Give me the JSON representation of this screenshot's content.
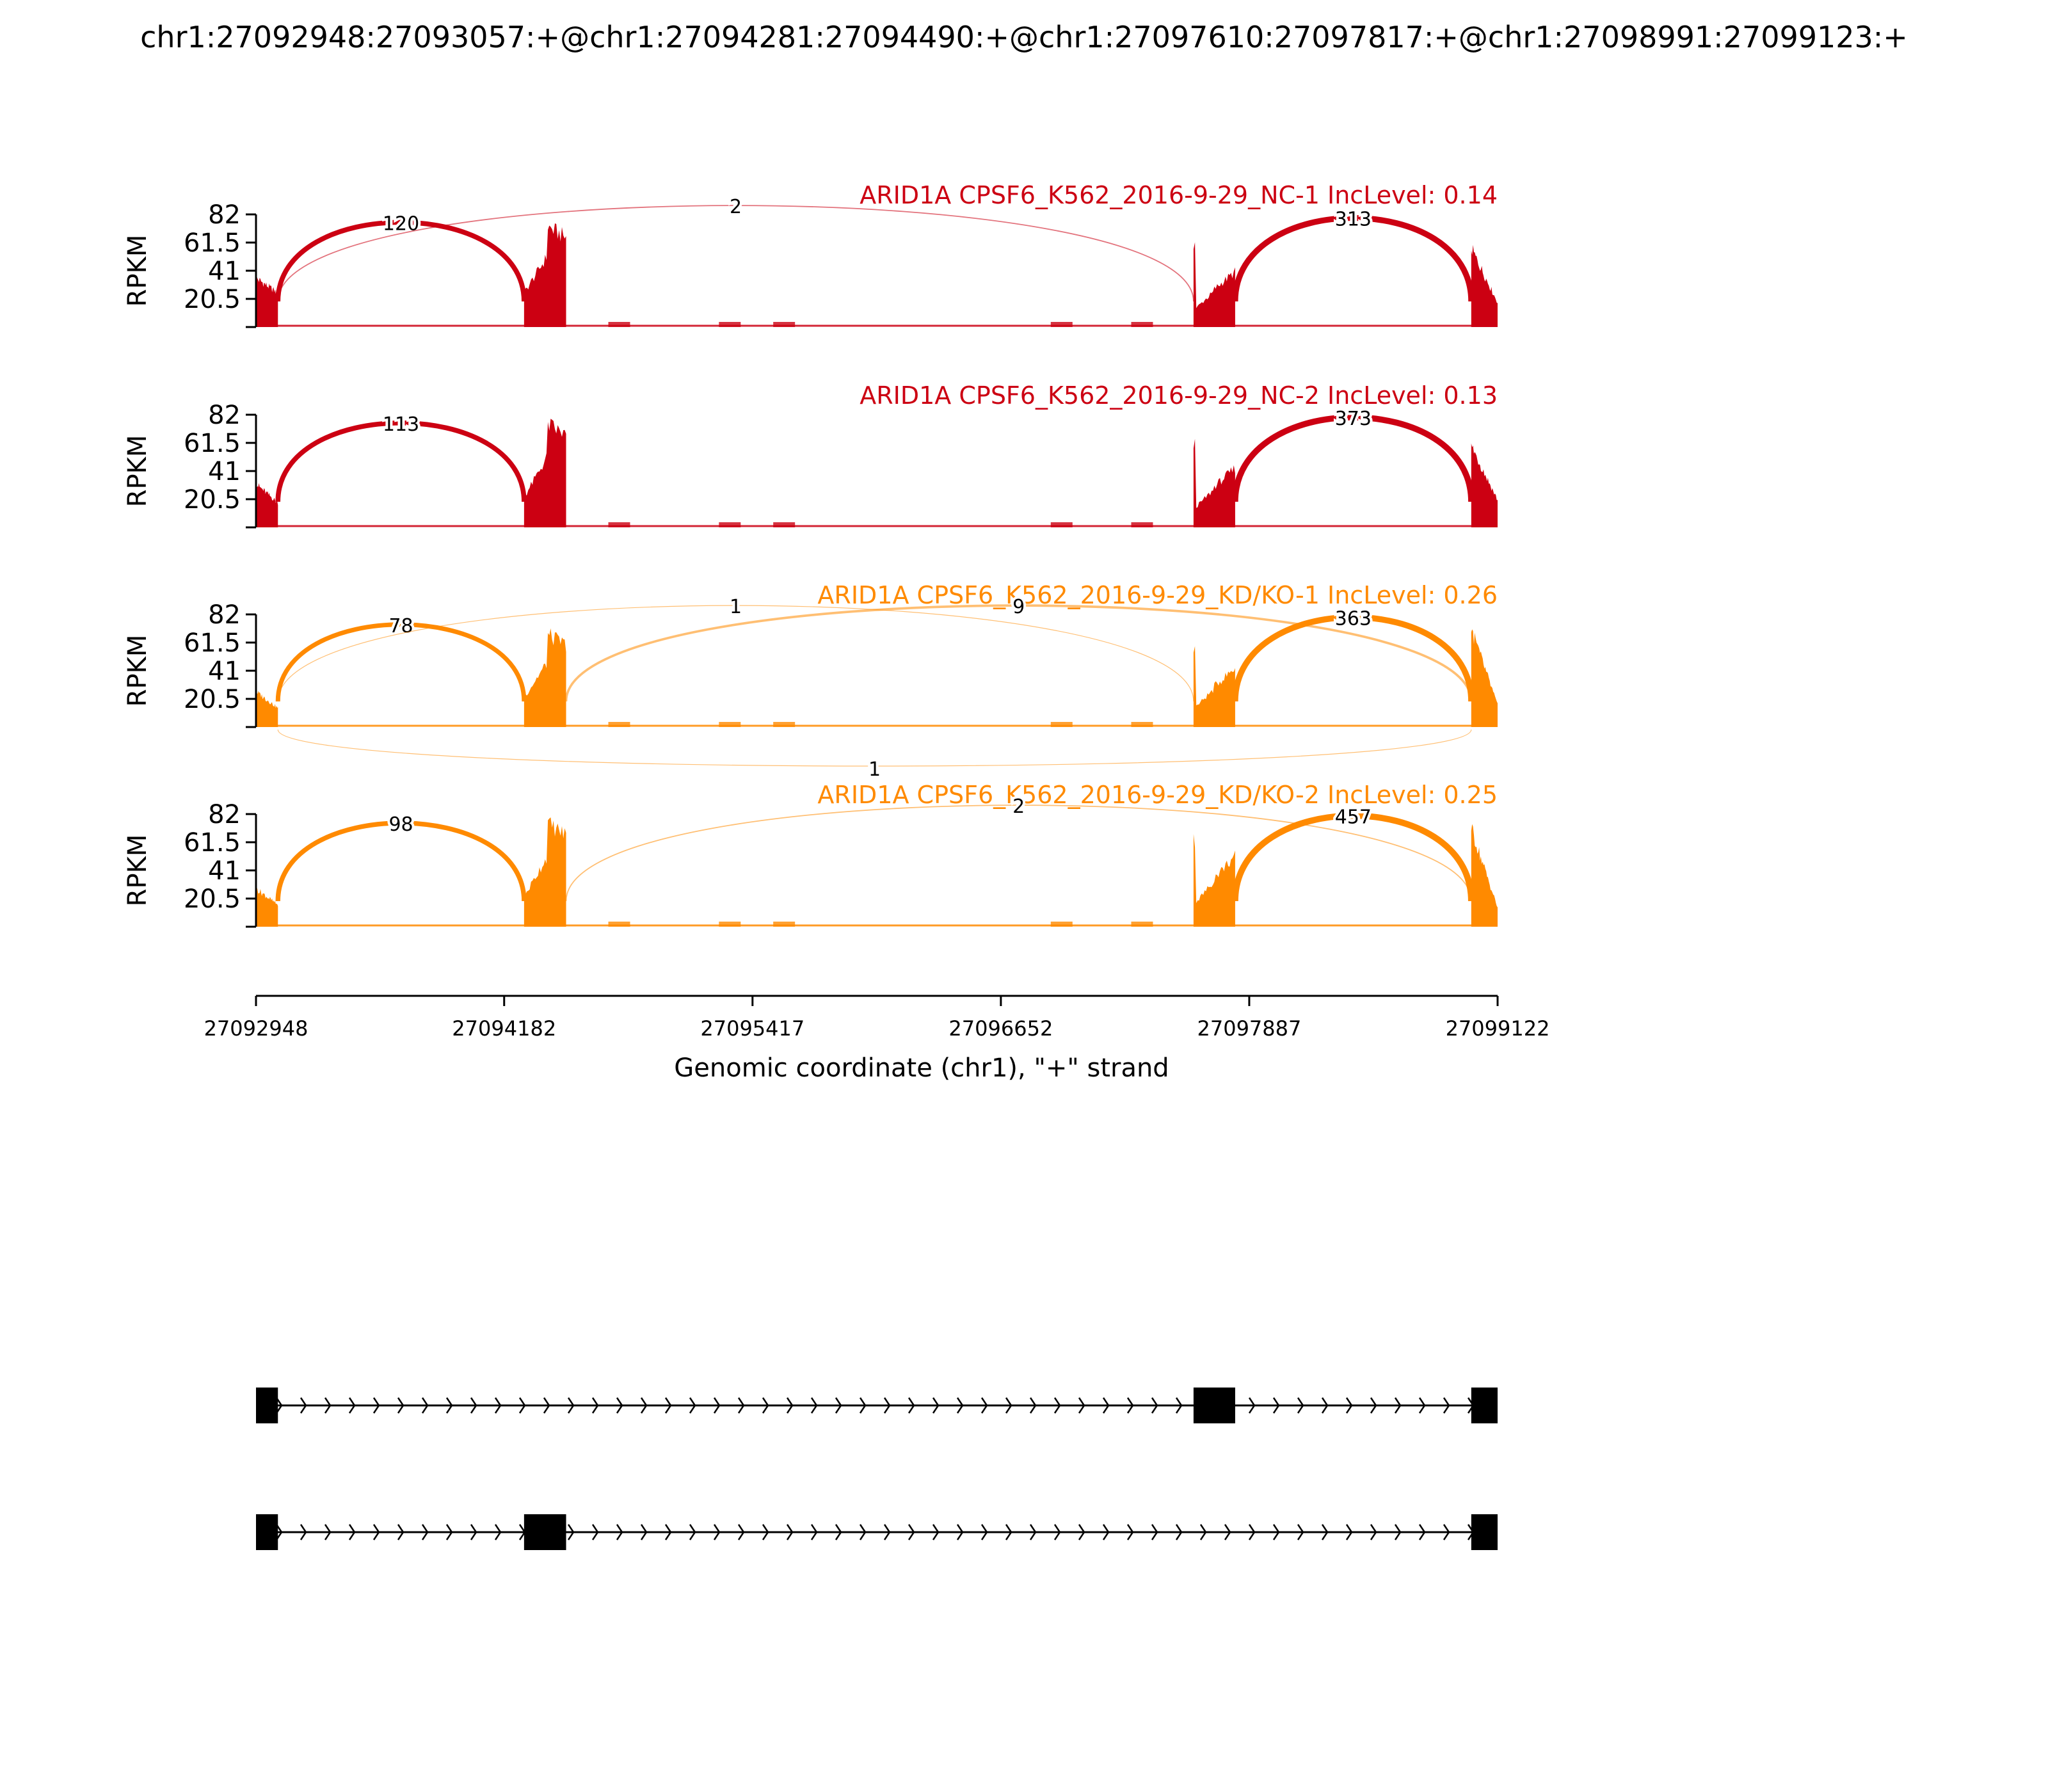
{
  "title": "chr1:27092948:27093057:+@chr1:27094281:27094490:+@chr1:27097610:27097817:+@chr1:27098991:27099123:+",
  "colors": {
    "nc": "#cc0012",
    "kd": "#ff8a00",
    "axis": "#000000",
    "gene": "#000000"
  },
  "chart_data": {
    "type": "area",
    "xlabel": "Genomic coordinate (chr1), \"+\" strand",
    "ylabel": "RPKM",
    "xlim": [
      27092948,
      27099122
    ],
    "ylim": [
      0,
      82
    ],
    "xticks": [
      "27092948",
      "27094182",
      "27095417",
      "27096652",
      "27097887",
      "27099122"
    ],
    "yticks": [
      "20.5",
      "41",
      "61.5",
      "82"
    ],
    "exons": [
      {
        "start": 27092948,
        "end": 27093057
      },
      {
        "start": 27094281,
        "end": 27094490
      },
      {
        "start": 27097610,
        "end": 27097817
      },
      {
        "start": 27098991,
        "end": 27099123
      }
    ],
    "samples": [
      {
        "label": "ARID1A CPSF6_K562_2016-9-29_NC-1 IncLevel: 0.14",
        "group": "nc",
        "exon_coverage": [
          [
            36,
            25
          ],
          [
            25,
            74
          ],
          [
            62,
            28
          ],
          [
            58,
            18
          ]
        ],
        "junctions": [
          {
            "from": 27093057,
            "to": 27094281,
            "count": "120",
            "side": "above"
          },
          {
            "from": 27093057,
            "to": 27097610,
            "count": "2",
            "side": "above"
          },
          {
            "from": 27097817,
            "to": 27098991,
            "count": "313",
            "side": "above"
          }
        ]
      },
      {
        "label": "ARID1A CPSF6_K562_2016-9-29_NC-2 IncLevel: 0.13",
        "group": "nc",
        "exon_coverage": [
          [
            32,
            18
          ],
          [
            22,
            76
          ],
          [
            61,
            30
          ],
          [
            60,
            20
          ]
        ],
        "junctions": [
          {
            "from": 27093057,
            "to": 27094281,
            "count": "113",
            "side": "above"
          },
          {
            "from": 27097817,
            "to": 27098991,
            "count": "373",
            "side": "above"
          }
        ]
      },
      {
        "label": "ARID1A CPSF6_K562_2016-9-29_KD/KO-1 IncLevel: 0.26",
        "group": "kd",
        "exon_coverage": [
          [
            26,
            14
          ],
          [
            22,
            68
          ],
          [
            60,
            30
          ],
          [
            72,
            16
          ]
        ],
        "junctions": [
          {
            "from": 27093057,
            "to": 27094281,
            "count": "78",
            "side": "above"
          },
          {
            "from": 27094490,
            "to": 27098991,
            "count": "9",
            "side": "above"
          },
          {
            "from": 27093057,
            "to": 27097610,
            "count": "1",
            "side": "above"
          },
          {
            "from": 27097817,
            "to": 27098991,
            "count": "363",
            "side": "above"
          },
          {
            "from": 27093057,
            "to": 27098991,
            "count": "1",
            "side": "below"
          }
        ]
      },
      {
        "label": "ARID1A CPSF6_K562_2016-9-29_KD/KO-2 IncLevel: 0.25",
        "group": "kd",
        "exon_coverage": [
          [
            28,
            16
          ],
          [
            22,
            76
          ],
          [
            64,
            36
          ],
          [
            72,
            14
          ]
        ],
        "junctions": [
          {
            "from": 27093057,
            "to": 27094281,
            "count": "98",
            "side": "above"
          },
          {
            "from": 27094490,
            "to": 27098991,
            "count": "2",
            "side": "above"
          },
          {
            "from": 27097817,
            "to": 27098991,
            "count": "457",
            "side": "above"
          }
        ]
      }
    ],
    "isoforms": [
      {
        "exons": [
          [
            27092948,
            27093057
          ],
          [
            27097610,
            27097817
          ],
          [
            27098991,
            27099122
          ]
        ]
      },
      {
        "exons": [
          [
            27092948,
            27093057
          ],
          [
            27094281,
            27094490
          ],
          [
            27098991,
            27099122
          ]
        ]
      }
    ]
  }
}
